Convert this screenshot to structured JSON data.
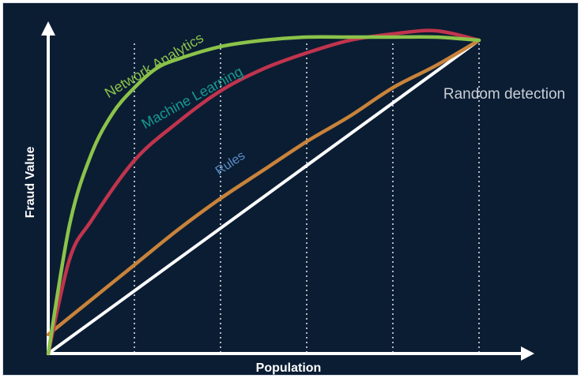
{
  "chart_data": {
    "type": "line",
    "title": "",
    "xlabel": "Population",
    "ylabel": "Fraud Value",
    "x_ticks": [],
    "y_ticks": [],
    "xlim": [
      0,
      100
    ],
    "ylim": [
      0,
      100
    ],
    "grid": "vertical dotted lines",
    "background": "#0b1d33",
    "series": [
      {
        "name": "Network Analytics",
        "color": "#8bc34a",
        "x": [
          0,
          5,
          10,
          15,
          20,
          25,
          30,
          40,
          50,
          60,
          70,
          80,
          90,
          100
        ],
        "y": [
          0,
          41,
          63,
          76,
          84,
          90,
          93,
          97,
          99,
          100,
          100,
          100,
          100,
          99
        ]
      },
      {
        "name": "Machine Learning",
        "color": "#c0344d",
        "x": [
          0,
          5,
          10,
          20,
          30,
          40,
          50,
          60,
          70,
          80,
          90,
          100
        ],
        "y": [
          0,
          30,
          42,
          61,
          73,
          83,
          90,
          95,
          99,
          101,
          102,
          99
        ]
      },
      {
        "name": "Rules",
        "color": "#c8833a",
        "x": [
          0,
          10,
          20,
          30,
          40,
          50,
          60,
          70,
          80,
          90,
          100
        ],
        "y": [
          6,
          17,
          28,
          39,
          49,
          58,
          67,
          75,
          84,
          91,
          99
        ]
      },
      {
        "name": "Random detection",
        "color": "#ffffff",
        "x": [
          0,
          100
        ],
        "y": [
          0,
          99
        ]
      }
    ],
    "labels": {
      "network": "Network Analytics",
      "ml": "Machine Learning",
      "rules": "Rules",
      "random": "Random detection"
    }
  }
}
